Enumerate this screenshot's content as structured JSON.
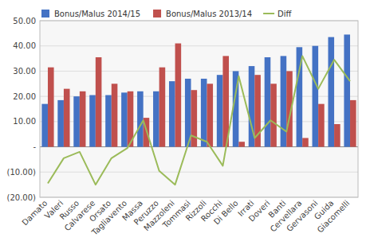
{
  "chart_data": {
    "type": "bar",
    "categories": [
      "Damato",
      "Valeri",
      "Russo",
      "Calvarese",
      "Orsato",
      "Tagliavento",
      "Massa",
      "Peruzzo",
      "Mazzoleni",
      "Tommasi",
      "Rizzoli",
      "Rocchi",
      "Di Bello",
      "Irrati",
      "Doveri",
      "Banti",
      "Cervellara",
      "Gervasoni",
      "Guida",
      "Giacomelli"
    ],
    "series": [
      {
        "name": "Bonus/Malus 2014/15",
        "type": "bar",
        "color": "#4472C4",
        "values": [
          17,
          18.5,
          20,
          20.5,
          20.5,
          21.5,
          22,
          22,
          26,
          27,
          27,
          28.5,
          30,
          32,
          35.5,
          36,
          39.5,
          40,
          43.5,
          44.5
        ]
      },
      {
        "name": "Bonus/Malus 2013/14",
        "type": "bar",
        "color": "#C0504D",
        "values": [
          31.5,
          23,
          22,
          35.5,
          25,
          22,
          11.5,
          31.5,
          41,
          22.5,
          25,
          36,
          2,
          28.5,
          25,
          30,
          3.5,
          17,
          9,
          18.5
        ]
      },
      {
        "name": "Diff",
        "type": "line",
        "color": "#9BBB59",
        "values": [
          -14.5,
          -4.5,
          -2,
          -15,
          -4.5,
          -0.5,
          10.5,
          -9.5,
          -15,
          4.5,
          2,
          -7.5,
          28,
          3.5,
          10.5,
          6,
          36,
          23,
          34.5,
          26
        ]
      }
    ],
    "ylim": [
      -20,
      50
    ],
    "yticks": [
      {
        "value": -20,
        "label": "(20.00)"
      },
      {
        "value": -10,
        "label": "(10.00)"
      },
      {
        "value": 0,
        "label": "-"
      },
      {
        "value": 10,
        "label": "10.00"
      },
      {
        "value": 20,
        "label": "20.00"
      },
      {
        "value": 30,
        "label": "30.00"
      },
      {
        "value": 40,
        "label": "40.00"
      },
      {
        "value": 50,
        "label": "50.00"
      }
    ],
    "grid": true,
    "legend": "upper left"
  }
}
